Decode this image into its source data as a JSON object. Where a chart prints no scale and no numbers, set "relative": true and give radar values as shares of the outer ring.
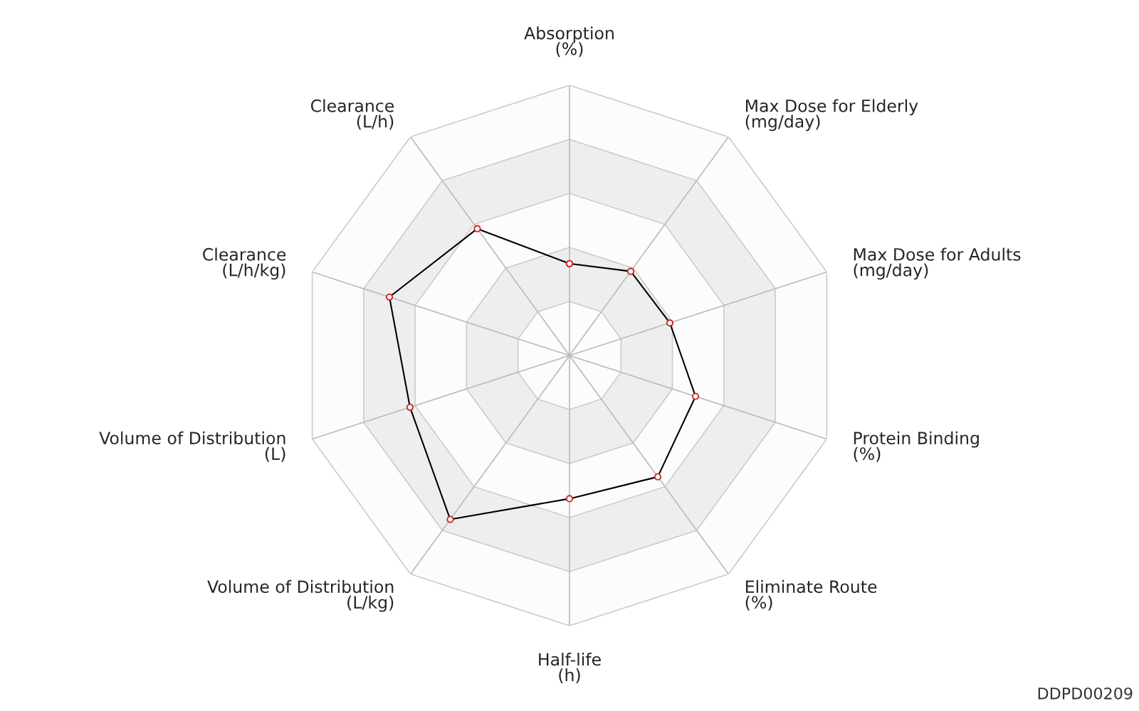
{
  "chart_data": {
    "type": "radar",
    "relative": true,
    "marker": "circle",
    "line_style": "solid",
    "categories": [
      "Absorption\n(%)",
      "Max Dose for Elderly\n(mg/day)",
      "Max Dose for Adults\n(mg/day)",
      "Protein Binding\n(%)",
      "Eliminate Route\n(%)",
      "Half-life\n(h)",
      "Volume of Distribution\n(L/kg)",
      "Volume of Distribution\n(L)",
      "Clearance\n(L/h/kg)",
      "Clearance\n(L/h)"
    ],
    "series": [
      {
        "color": "#000000",
        "values": [
          0.34,
          0.385,
          0.39,
          0.49,
          0.555,
          0.53,
          0.75,
          0.62,
          0.7,
          0.58
        ]
      }
    ],
    "annotations": [
      "DDPD00209"
    ]
  }
}
